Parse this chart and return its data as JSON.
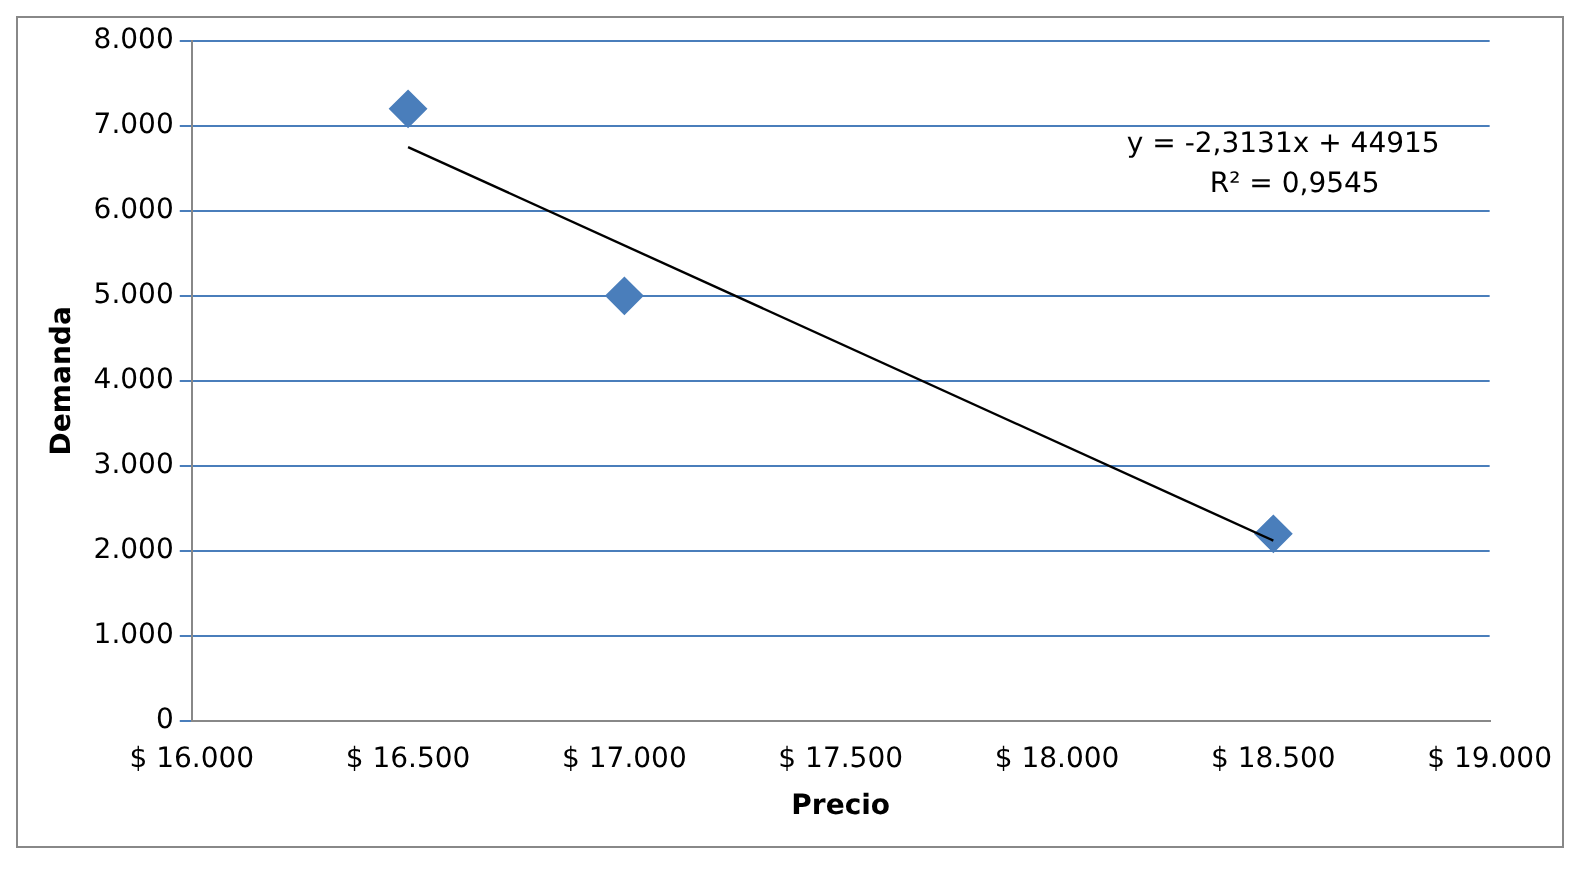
{
  "chart_data": {
    "type": "scatter",
    "xlabel": "Precio",
    "ylabel": "Demanda",
    "x": [
      16500,
      17000,
      18500
    ],
    "series": [
      {
        "color": "#4a7ebb",
        "marker": "diamond",
        "values": [
          7200,
          5000,
          2200
        ]
      },
      {
        "type": "line",
        "color": "#000000",
        "marker": "none",
        "x": [
          16500,
          18500
        ],
        "values": [
          6750,
          2120
        ]
      }
    ],
    "xlim": [
      16000,
      19000
    ],
    "xticks": [
      {
        "value": 16000,
        "label": "$ 16.000"
      },
      {
        "value": 16500,
        "label": "$ 16.500"
      },
      {
        "value": 17000,
        "label": "$ 17.000"
      },
      {
        "value": 17500,
        "label": "$ 17.500"
      },
      {
        "value": 18000,
        "label": "$ 18.000"
      },
      {
        "value": 18500,
        "label": "$ 18.500"
      },
      {
        "value": 19000,
        "label": "$ 19.000"
      }
    ],
    "ylim": [
      0,
      8000
    ],
    "yticks": [
      0,
      {
        "value": 1000,
        "label": "1.000"
      },
      {
        "value": 2000,
        "label": "2.000"
      },
      {
        "value": 3000,
        "label": "3.000"
      },
      {
        "value": 4000,
        "label": "4.000"
      },
      {
        "value": 5000,
        "label": "5.000"
      },
      {
        "value": 6000,
        "label": "6.000"
      },
      {
        "value": 7000,
        "label": "7.000"
      },
      {
        "value": 8000,
        "label": "8.000"
      }
    ],
    "grid": "y",
    "legend": false,
    "annotations": [
      "y = -2,3131x + 44915",
      "R² = 0,9545"
    ]
  }
}
